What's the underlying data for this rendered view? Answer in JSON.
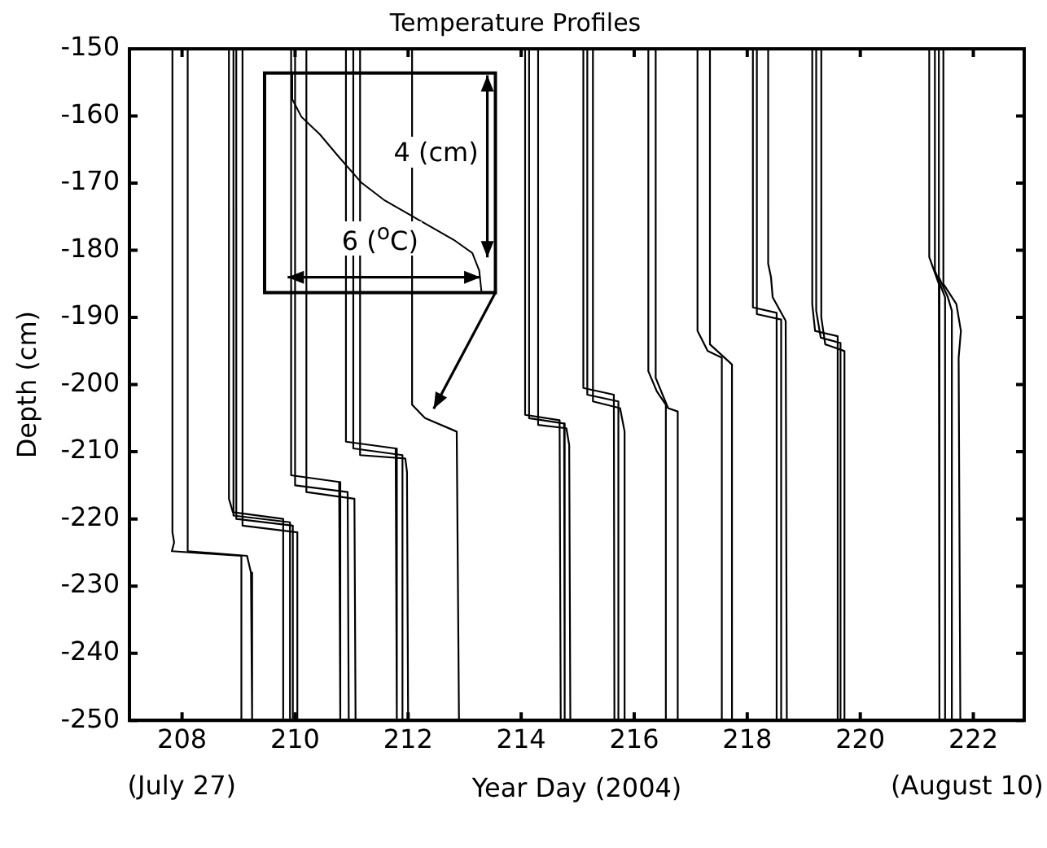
{
  "chart_data": {
    "type": "line",
    "title": "Temperature Profiles",
    "xlabel": "Year Day (2004)",
    "ylabel": "Depth (cm)",
    "xlim": [
      207.07,
      222.9
    ],
    "xticks": [
      208,
      210,
      212,
      214,
      216,
      218,
      220,
      222
    ],
    "ylim": [
      -250,
      -150
    ],
    "yticks": [
      -250,
      -240,
      -230,
      -220,
      -210,
      -200,
      -190,
      -180,
      -170,
      -160,
      -150
    ],
    "grid": false,
    "legend": false,
    "marker": "none",
    "line_style": "solid",
    "annotations": [
      "(July 27)",
      "(August 10)",
      "4 (cm)",
      "6 ($^{o}$C)"
    ],
    "series": [
      {
        "color": "#000000",
        "x": [
          207.83,
          207.83,
          207.86,
          207.82,
          209.05,
          209.05
        ],
        "values": [
          -150,
          -222,
          -223.5,
          -224.8,
          -225.5,
          -250
        ]
      },
      {
        "color": "#000000",
        "x": [
          208.1,
          208.1,
          209.15,
          209.22,
          209.24
        ],
        "values": [
          -150,
          -224.8,
          -225.5,
          -228,
          -250
        ]
      },
      {
        "color": "#000000",
        "x": [
          208.83,
          208.83,
          208.9,
          209.79,
          209.79
        ],
        "values": [
          -150,
          -217,
          -219,
          -220,
          -250
        ]
      },
      {
        "color": "#000000",
        "x": [
          208.91,
          208.91,
          209.91,
          209.91
        ],
        "values": [
          -150,
          -219.5,
          -220.5,
          -250
        ]
      },
      {
        "color": "#000000",
        "x": [
          208.96,
          208.96,
          209.96,
          209.96
        ],
        "values": [
          -150,
          -220,
          -221,
          -250
        ]
      },
      {
        "color": "#000000",
        "x": [
          209.07,
          209.07,
          210.04,
          210.04
        ],
        "values": [
          -150,
          -221,
          -222,
          -250
        ]
      },
      {
        "color": "#000000",
        "x": [
          209.93,
          209.93,
          210.78,
          210.8
        ],
        "values": [
          -150,
          -213.5,
          -214.5,
          -250
        ]
      },
      {
        "color": "#000000",
        "x": [
          210.0,
          210.0,
          210.93,
          210.95
        ],
        "values": [
          -150,
          -215,
          -216,
          -250
        ]
      },
      {
        "color": "#000000",
        "x": [
          210.2,
          210.2,
          211.05,
          211.07
        ],
        "values": [
          -150,
          -216,
          -217,
          -250
        ]
      },
      {
        "color": "#000000",
        "x": [
          210.9,
          210.9,
          211.78,
          211.8
        ],
        "values": [
          -150,
          -208.5,
          -209.5,
          -250
        ]
      },
      {
        "color": "#000000",
        "x": [
          211.03,
          211.03,
          211.9,
          211.9
        ],
        "values": [
          -150,
          -209.5,
          -210.5,
          -250
        ]
      },
      {
        "color": "#000000",
        "x": [
          211.15,
          211.15,
          211.95,
          211.98,
          212.0
        ],
        "values": [
          -150,
          -210.5,
          -211,
          -213,
          -250
        ]
      },
      {
        "color": "#000000",
        "x": [
          212.07,
          212.07,
          212.3,
          212.86,
          212.9
        ],
        "values": [
          -150,
          -203,
          -205,
          -207,
          -250
        ]
      },
      {
        "color": "#000000",
        "x": [
          214.07,
          214.07,
          214.68,
          214.7
        ],
        "values": [
          -150,
          -204.5,
          -205.3,
          -250
        ]
      },
      {
        "color": "#000000",
        "x": [
          214.14,
          214.14,
          214.76,
          214.77
        ],
        "values": [
          -150,
          -205,
          -205.8,
          -250
        ]
      },
      {
        "color": "#000000",
        "x": [
          214.3,
          214.3,
          214.8,
          214.85,
          214.87
        ],
        "values": [
          -150,
          -206,
          -206.5,
          -209,
          -250
        ]
      },
      {
        "color": "#000000",
        "x": [
          215.1,
          215.1,
          215.64,
          215.65
        ],
        "values": [
          -150,
          -200.5,
          -201.5,
          -250
        ]
      },
      {
        "color": "#000000",
        "x": [
          215.17,
          215.17,
          215.72,
          215.72
        ],
        "values": [
          -150,
          -201.5,
          -202.5,
          -250
        ]
      },
      {
        "color": "#000000",
        "x": [
          215.27,
          215.27,
          215.75,
          215.83,
          215.83
        ],
        "values": [
          -150,
          -202.5,
          -203.5,
          -207,
          -250
        ]
      },
      {
        "color": "#000000",
        "x": [
          216.25,
          216.25,
          216.4,
          216.56,
          216.56
        ],
        "values": [
          -150,
          -198,
          -201,
          -203,
          -250
        ]
      },
      {
        "color": "#000000",
        "x": [
          216.38,
          216.38,
          216.6,
          216.77,
          216.77
        ],
        "values": [
          -150,
          -199,
          -203.5,
          -204,
          -250
        ]
      },
      {
        "color": "#000000",
        "x": [
          217.12,
          217.12,
          217.3,
          217.55,
          217.55
        ],
        "values": [
          -150,
          -192,
          -195,
          -196,
          -250
        ]
      },
      {
        "color": "#000000",
        "x": [
          217.34,
          217.34,
          217.73,
          217.73
        ],
        "values": [
          -150,
          -194,
          -197,
          -250
        ]
      },
      {
        "color": "#000000",
        "x": [
          218.1,
          218.1,
          218.52,
          218.52
        ],
        "values": [
          -150,
          -188.5,
          -189.3,
          -250
        ]
      },
      {
        "color": "#000000",
        "x": [
          218.17,
          218.17,
          218.6,
          218.6
        ],
        "values": [
          -150,
          -189.5,
          -190.3,
          -250
        ]
      },
      {
        "color": "#000000",
        "x": [
          218.37,
          218.37,
          218.42,
          218.45,
          218.68,
          218.7
        ],
        "values": [
          -150,
          -182,
          -184,
          -187,
          -190.5,
          -250
        ]
      },
      {
        "color": "#000000",
        "x": [
          219.15,
          219.15,
          219.2,
          219.6,
          219.6
        ],
        "values": [
          -150,
          -188,
          -192,
          -192.8,
          -250
        ]
      },
      {
        "color": "#000000",
        "x": [
          219.22,
          219.22,
          219.3,
          219.65,
          219.65
        ],
        "values": [
          -150,
          -189,
          -193,
          -193.8,
          -250
        ]
      },
      {
        "color": "#000000",
        "x": [
          219.31,
          219.31,
          219.38,
          219.72,
          219.72
        ],
        "values": [
          -150,
          -190,
          -194,
          -195,
          -250
        ]
      },
      {
        "color": "#000000",
        "x": [
          221.22,
          221.22,
          221.39,
          221.4
        ],
        "values": [
          -150,
          -181,
          -185,
          -250
        ]
      },
      {
        "color": "#000000",
        "x": [
          221.32,
          221.32,
          221.5,
          221.5
        ],
        "values": [
          -150,
          -183,
          -187,
          -250
        ]
      },
      {
        "color": "#000000",
        "x": [
          221.39,
          221.39,
          221.55,
          221.62,
          221.62
        ],
        "values": [
          -150,
          -184,
          -187,
          -189,
          -250
        ]
      },
      {
        "color": "#000000",
        "x": [
          221.47,
          221.47,
          221.7,
          221.78,
          221.74,
          221.77
        ],
        "values": [
          -150,
          -185,
          -188,
          -192,
          -196,
          -250
        ]
      }
    ]
  }
}
